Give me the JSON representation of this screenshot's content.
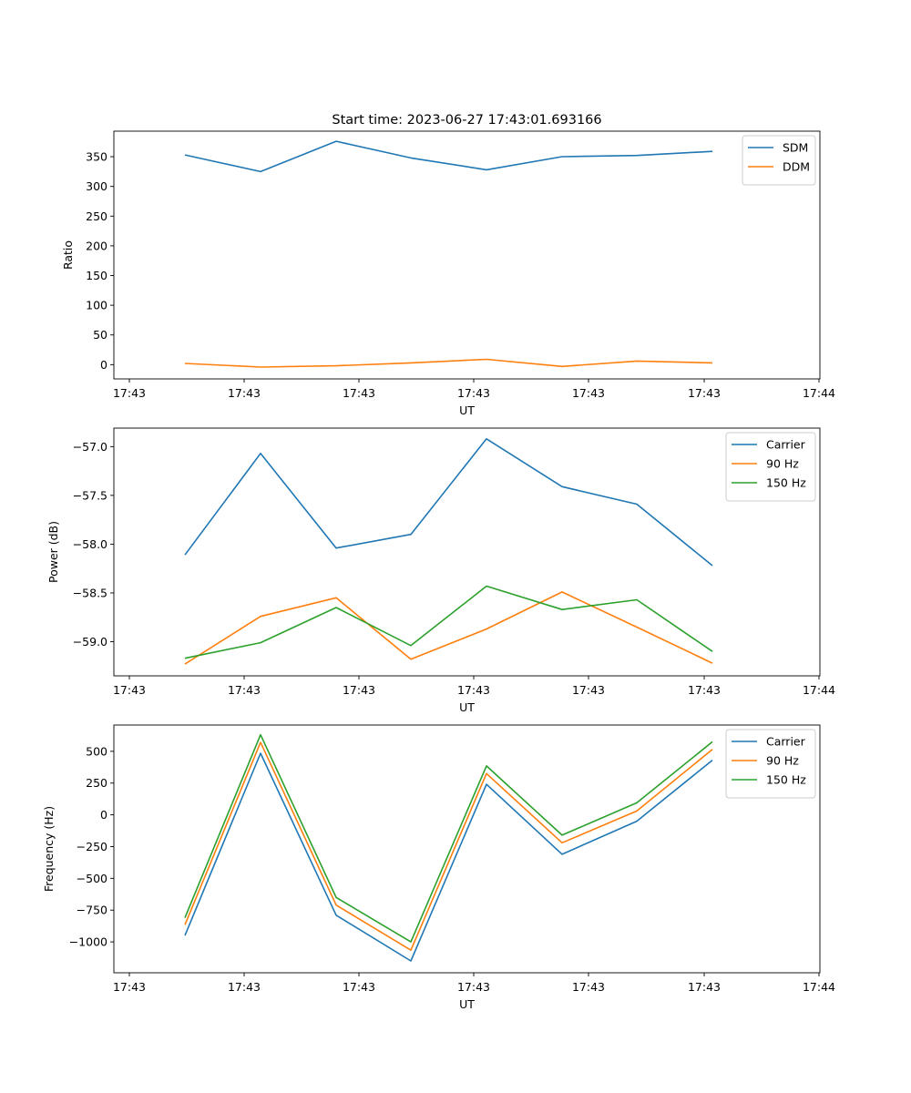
{
  "figure_title": "Start time: 2023-06-27 17:43:01.693166",
  "chart_data": [
    {
      "type": "line",
      "xlabel": "UT",
      "ylabel": "Ratio",
      "xtick_labels": [
        "17:43",
        "17:43",
        "17:43",
        "17:43",
        "17:43",
        "17:43",
        "17:44"
      ],
      "ylim": [
        -24,
        393
      ],
      "yticks": [
        0,
        50,
        100,
        150,
        200,
        250,
        300,
        350
      ],
      "ytick_labels": [
        "0",
        "50",
        "100",
        "150",
        "200",
        "250",
        "300",
        "350"
      ],
      "grid": false,
      "legend_position": "top-right",
      "series": [
        {
          "name": "SDM",
          "color": "#1f77b4",
          "values": [
            353,
            325,
            376,
            348,
            328,
            350,
            352,
            359
          ]
        },
        {
          "name": "DDM",
          "color": "#ff7f0e",
          "values": [
            2,
            -4,
            -2,
            3,
            9,
            -3,
            6,
            3
          ]
        }
      ]
    },
    {
      "type": "line",
      "xlabel": "UT",
      "ylabel": "Power (dB)",
      "xtick_labels": [
        "17:43",
        "17:43",
        "17:43",
        "17:43",
        "17:43",
        "17:43",
        "17:44"
      ],
      "ylim": [
        -59.35,
        -56.81
      ],
      "yticks": [
        -59.0,
        -58.5,
        -58.0,
        -57.5,
        -57.0
      ],
      "ytick_labels": [
        "−59.0",
        "−58.5",
        "−58.0",
        "−57.5",
        "−57.0"
      ],
      "grid": false,
      "legend_position": "top-right",
      "series": [
        {
          "name": "Carrier",
          "color": "#1f77b4",
          "values": [
            -58.11,
            -57.07,
            -58.04,
            -57.9,
            -56.92,
            -57.41,
            -57.59,
            -58.22
          ]
        },
        {
          "name": "90 Hz",
          "color": "#ff7f0e",
          "values": [
            -59.23,
            -58.74,
            -58.55,
            -59.18,
            -58.87,
            -58.49,
            -58.85,
            -59.22
          ]
        },
        {
          "name": "150 Hz",
          "color": "#2ca02c",
          "values": [
            -59.17,
            -59.01,
            -58.65,
            -59.04,
            -58.43,
            -58.67,
            -58.57,
            -59.1
          ]
        }
      ]
    },
    {
      "type": "line",
      "xlabel": "UT",
      "ylabel": "Frequency (Hz)",
      "xtick_labels": [
        "17:43",
        "17:43",
        "17:43",
        "17:43",
        "17:43",
        "17:43",
        "17:44"
      ],
      "ylim": [
        -1243,
        707
      ],
      "yticks": [
        -1000,
        -750,
        -500,
        -250,
        0,
        250,
        500
      ],
      "ytick_labels": [
        "−1000",
        "−750",
        "−500",
        "−250",
        "0",
        "250",
        "500"
      ],
      "grid": false,
      "legend_position": "top-right",
      "series": [
        {
          "name": "Carrier",
          "color": "#1f77b4",
          "values": [
            -950,
            485,
            -790,
            -1150,
            240,
            -310,
            -50,
            430
          ]
        },
        {
          "name": "90 Hz",
          "color": "#ff7f0e",
          "values": [
            -865,
            570,
            -710,
            -1065,
            325,
            -220,
            30,
            515
          ]
        },
        {
          "name": "150 Hz",
          "color": "#2ca02c",
          "values": [
            -810,
            630,
            -650,
            -1000,
            385,
            -160,
            95,
            575
          ]
        }
      ]
    }
  ]
}
